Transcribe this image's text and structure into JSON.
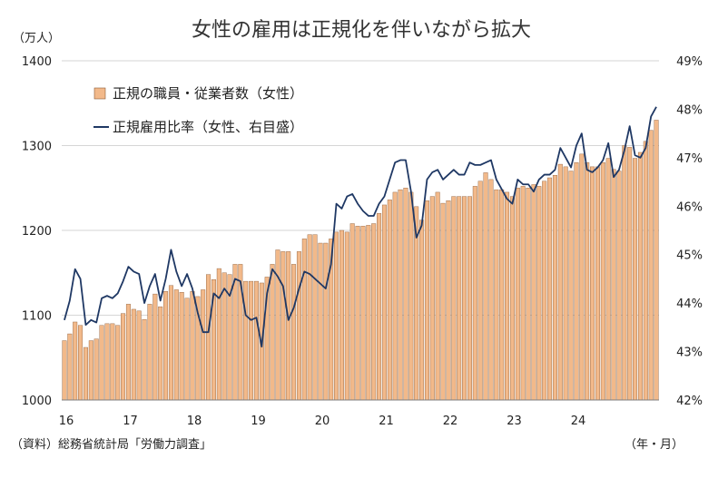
{
  "chart_data": {
    "type": "bar+line",
    "title": "女性の雇用は正規化を伴いながら拡大",
    "left_unit": "（万人）",
    "x_unit": "（年・月）",
    "source": "（資料）総務省統計局「労働力調査」",
    "left_axis": {
      "min": 1000,
      "max": 1400,
      "ticks": [
        "1000",
        "1100",
        "1200",
        "1300",
        "1400"
      ]
    },
    "right_axis": {
      "min": 42,
      "max": 49,
      "ticks": [
        "42%",
        "43%",
        "44%",
        "45%",
        "46%",
        "47%",
        "48%",
        "49%"
      ]
    },
    "x_tick_labels": [
      "16",
      "17",
      "18",
      "19",
      "20",
      "21",
      "22",
      "23",
      "24"
    ],
    "start": "2016-01",
    "grid": true,
    "legend": {
      "placement": "top-left",
      "bar_label": "正規の職員・従業者数（女性）",
      "line_label": "正規雇用比率（女性、右目盛）"
    },
    "colors": {
      "bar": "#f2b98a",
      "bar_edge": "#8a5a36",
      "line": "#1f3864",
      "grid": "#d6d6d6"
    },
    "series": [
      {
        "name": "正規の職員・従業者数（女性）",
        "axis": "left",
        "unit": "万人",
        "values": [
          1070,
          1078,
          1092,
          1088,
          1062,
          1070,
          1072,
          1088,
          1090,
          1090,
          1088,
          1102,
          1113,
          1107,
          1105,
          1095,
          1113,
          1125,
          1110,
          1128,
          1135,
          1130,
          1127,
          1120,
          1128,
          1122,
          1130,
          1148,
          1142,
          1155,
          1150,
          1148,
          1160,
          1160,
          1140,
          1140,
          1140,
          1138,
          1145,
          1160,
          1177,
          1175,
          1175,
          1160,
          1175,
          1190,
          1195,
          1195,
          1185,
          1185,
          1190,
          1198,
          1200,
          1198,
          1208,
          1205,
          1205,
          1206,
          1208,
          1220,
          1230,
          1236,
          1245,
          1248,
          1250,
          1245,
          1228,
          1212,
          1235,
          1240,
          1245,
          1232,
          1235,
          1240,
          1240,
          1240,
          1240,
          1252,
          1258,
          1268,
          1260,
          1248,
          1248,
          1245,
          1240,
          1250,
          1252,
          1250,
          1254,
          1252,
          1258,
          1262,
          1265,
          1278,
          1275,
          1270,
          1280,
          1290,
          1280,
          1275,
          1275,
          1280,
          1285,
          1272,
          1270,
          1300,
          1298,
          1285,
          1292,
          1305,
          1318,
          1330
        ]
      },
      {
        "name": "正規雇用比率（女性、右目盛）",
        "axis": "right",
        "unit": "%",
        "values": [
          43.65,
          44.05,
          44.7,
          44.5,
          43.55,
          43.65,
          43.6,
          44.1,
          44.15,
          44.1,
          44.2,
          44.45,
          44.75,
          44.65,
          44.6,
          44.0,
          44.35,
          44.6,
          44.05,
          44.5,
          45.1,
          44.65,
          44.35,
          44.6,
          44.3,
          43.8,
          43.4,
          43.4,
          44.2,
          44.1,
          44.3,
          44.15,
          44.5,
          44.45,
          43.75,
          43.65,
          43.7,
          43.1,
          44.2,
          44.7,
          44.55,
          44.35,
          43.65,
          43.9,
          44.3,
          44.65,
          44.6,
          44.5,
          44.4,
          44.3,
          44.8,
          46.05,
          45.95,
          46.2,
          46.25,
          46.05,
          45.9,
          45.8,
          45.8,
          46.05,
          46.2,
          46.55,
          46.9,
          46.95,
          46.95,
          46.3,
          45.35,
          45.6,
          46.55,
          46.7,
          46.75,
          46.55,
          46.65,
          46.75,
          46.65,
          46.65,
          46.9,
          46.85,
          46.85,
          46.9,
          46.95,
          46.55,
          46.35,
          46.15,
          46.05,
          46.55,
          46.45,
          46.45,
          46.3,
          46.55,
          46.65,
          46.65,
          46.75,
          47.2,
          47.0,
          46.8,
          47.25,
          47.5,
          46.75,
          46.7,
          46.8,
          46.95,
          47.3,
          46.6,
          46.75,
          47.15,
          47.65,
          47.05,
          47.0,
          47.2,
          47.85,
          48.05
        ]
      }
    ]
  }
}
